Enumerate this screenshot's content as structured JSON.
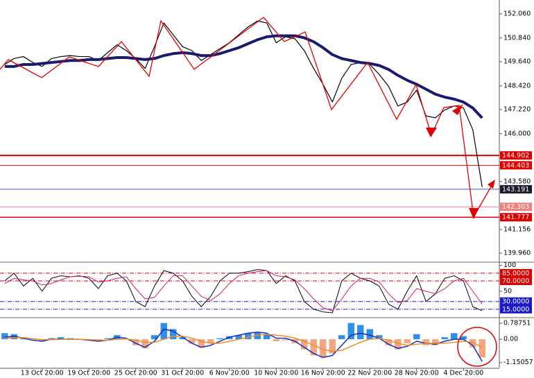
{
  "chart_data": [
    {
      "type": "line",
      "categories": [
        null,
        null,
        null,
        null,
        "13 Oct 20:00",
        null,
        null,
        null,
        null,
        "19 Oct 20:00",
        null,
        null,
        null,
        null,
        "25 Oct 20:00",
        null,
        null,
        null,
        null,
        "31 Oct 20:00",
        null,
        null,
        null,
        null,
        "6 Nov 20:00",
        null,
        null,
        null,
        null,
        "10 Nov 20:00",
        null,
        null,
        null,
        null,
        "16 Nov 20:00",
        null,
        null,
        null,
        null,
        "22 Nov 20:00",
        null,
        null,
        null,
        null,
        "28 Nov 20:00",
        null,
        null,
        null,
        null,
        "4 Dec 20:00",
        null,
        null
      ],
      "series": [
        {
          "color": "#000000",
          "width": 1.2,
          "values": [
            149.5,
            149.8,
            149.9,
            149.6,
            149.4,
            149.8,
            149.9,
            149.95,
            149.9,
            149.9,
            149.7,
            150.1,
            150.5,
            150.2,
            149.8,
            149.3,
            150.4,
            151.6,
            151.0,
            150.4,
            150.2,
            149.7,
            150.0,
            150.3,
            150.6,
            151.0,
            151.4,
            151.7,
            151.6,
            150.6,
            150.9,
            150.8,
            150.2,
            149.3,
            148.5,
            147.6,
            148.8,
            149.5,
            149.6,
            149.5,
            149.0,
            148.4,
            147.4,
            147.6,
            148.2,
            146.9,
            146.8,
            147.2,
            147.4,
            147.3,
            146.2,
            143.3
          ]
        },
        {
          "color": "#1a1a6e",
          "width": 4,
          "values": [
            149.4,
            149.4,
            149.5,
            149.5,
            149.55,
            149.6,
            149.65,
            149.7,
            149.7,
            149.75,
            149.75,
            149.8,
            149.85,
            149.85,
            149.8,
            149.75,
            149.8,
            149.95,
            150.05,
            150.1,
            150.05,
            149.95,
            149.95,
            150.05,
            150.2,
            150.35,
            150.55,
            150.75,
            150.9,
            150.95,
            150.95,
            150.95,
            150.85,
            150.65,
            150.35,
            150.0,
            149.8,
            149.7,
            149.6,
            149.55,
            149.45,
            149.25,
            148.95,
            148.7,
            148.5,
            148.25,
            148.0,
            147.85,
            147.75,
            147.6,
            147.3,
            146.8
          ]
        }
      ],
      "ylim": [
        139.54,
        152.76
      ],
      "yticks": [
        {
          "value": 152.06,
          "label": "152.060"
        },
        {
          "value": 150.84,
          "label": "150.840"
        },
        {
          "value": 149.64,
          "label": "149.640"
        },
        {
          "value": 148.42,
          "label": "148.420"
        },
        {
          "value": 147.22,
          "label": "147.220"
        },
        {
          "value": 146,
          "label": "146.000"
        },
        {
          "value": 143.58,
          "label": "143.580"
        },
        141.156,
        {
          "value": 139.96,
          "label": "139.960"
        }
      ],
      "levels": [
        {
          "value": 144.902,
          "color": "#e00000",
          "width": 2
        },
        {
          "value": 144.403,
          "color": "#e00000",
          "width": 1
        },
        {
          "value": 143.191,
          "color": "#1a1a9c",
          "width": 0.8,
          "tag": "#1a1a2e"
        },
        {
          "value": 142.303,
          "color": "#f08080",
          "width": 1
        },
        {
          "value": 141.777,
          "color": "#e00000",
          "width": 1.5
        }
      ]
    },
    {
      "type": "line",
      "series": [
        {
          "color": "#000000",
          "width": 1,
          "values": [
            70,
            85,
            60,
            75,
            50,
            75,
            80,
            78,
            80,
            75,
            55,
            80,
            85,
            70,
            30,
            20,
            60,
            90,
            85,
            70,
            40,
            20,
            40,
            70,
            85,
            85,
            88,
            92,
            90,
            65,
            80,
            70,
            30,
            15,
            10,
            8,
            70,
            85,
            75,
            70,
            60,
            25,
            15,
            50,
            80,
            30,
            45,
            75,
            80,
            70,
            20,
            12
          ]
        },
        {
          "color": "#d02060",
          "width": 1,
          "values": [
            65,
            75,
            72,
            70,
            62,
            65,
            72,
            78,
            79,
            78,
            68,
            70,
            75,
            78,
            55,
            35,
            38,
            60,
            80,
            80,
            60,
            40,
            32,
            45,
            65,
            80,
            85,
            88,
            90,
            80,
            78,
            72,
            55,
            35,
            18,
            12,
            35,
            60,
            75,
            75,
            68,
            45,
            28,
            32,
            55,
            50,
            45,
            55,
            70,
            75,
            50,
            25
          ]
        }
      ],
      "ylim": [
        0,
        105
      ],
      "yticks": [
        100,
        50
      ],
      "levels": [
        {
          "value": 85,
          "label": "85.0000",
          "color": "#e00000",
          "width": 1,
          "dash": "6 2 1 2"
        },
        {
          "value": 70,
          "label": "70.0000",
          "color": "#e00000",
          "width": 1,
          "dash": "6 2 1 2"
        },
        {
          "value": 30,
          "label": "30.0000",
          "color": "#1a1acc",
          "width": 1,
          "dash": "6 2 1 2"
        },
        {
          "value": 15,
          "label": "15.0000",
          "color": "#1a1acc",
          "width": 1,
          "dash": "6 2 1 2"
        }
      ]
    },
    {
      "type": "combo",
      "series": [
        {
          "type": "bar",
          "color": "#2f8fe8",
          "negative_color": "#f4a582",
          "values": [
            0.3,
            0.25,
            0.1,
            -0.05,
            -0.1,
            0.05,
            0.1,
            0.05,
            0.0,
            -0.05,
            -0.1,
            0.05,
            0.2,
            0.0,
            -0.3,
            -0.45,
            0.2,
            0.8,
            0.5,
            0.1,
            -0.2,
            -0.4,
            -0.2,
            0.05,
            0.15,
            0.2,
            0.3,
            0.35,
            0.25,
            -0.1,
            -0.05,
            -0.2,
            -0.5,
            -0.8,
            -0.9,
            -0.7,
            0.2,
            0.8,
            0.7,
            0.5,
            0.2,
            -0.3,
            -0.5,
            -0.2,
            0.25,
            -0.3,
            -0.3,
            0.1,
            0.3,
            0.15,
            -0.4,
            -0.9
          ]
        },
        {
          "type": "line",
          "color": "#1030c0",
          "width": 1.5,
          "values": [
            0.1,
            0.15,
            0.05,
            -0.05,
            -0.1,
            0.0,
            0.0,
            0.0,
            0.0,
            -0.05,
            -0.1,
            -0.05,
            0.1,
            0.05,
            -0.2,
            -0.4,
            -0.1,
            0.5,
            0.4,
            0.1,
            -0.2,
            -0.4,
            -0.3,
            -0.1,
            0.1,
            0.2,
            0.3,
            0.35,
            0.3,
            0.05,
            0.05,
            -0.1,
            -0.4,
            -0.7,
            -0.9,
            -0.8,
            -0.3,
            0.2,
            0.3,
            0.2,
            0.05,
            -0.25,
            -0.45,
            -0.35,
            -0.1,
            -0.2,
            -0.25,
            -0.1,
            0.0,
            0.0,
            -0.3,
            -1.1
          ]
        },
        {
          "type": "line",
          "color": "#f08c1e",
          "width": 1.5,
          "values": [
            0.05,
            0.08,
            0.07,
            0.03,
            -0.02,
            -0.02,
            -0.01,
            0.0,
            0.0,
            -0.02,
            -0.05,
            -0.05,
            0.0,
            0.02,
            -0.05,
            -0.15,
            -0.15,
            0.0,
            0.15,
            0.15,
            0.05,
            -0.1,
            -0.2,
            -0.2,
            -0.1,
            0.0,
            0.1,
            0.2,
            0.25,
            0.2,
            0.15,
            0.05,
            -0.1,
            -0.3,
            -0.5,
            -0.6,
            -0.55,
            -0.35,
            -0.15,
            0.0,
            0.05,
            -0.05,
            -0.2,
            -0.3,
            -0.25,
            -0.2,
            -0.2,
            -0.2,
            -0.15,
            -0.1,
            -0.15,
            -0.4
          ]
        }
      ],
      "ylim": [
        -1.4,
        1.03
      ],
      "yticks": [
        0.78751,
        {
          "value": 0,
          "label": "0.00"
        },
        -1.15057
      ]
    }
  ]
}
